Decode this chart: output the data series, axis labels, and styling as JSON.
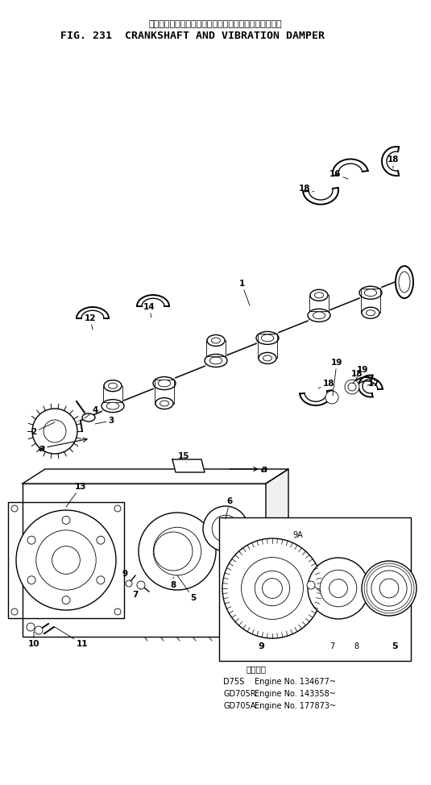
{
  "title_japanese": "クランクシャフト　および　バイブレーション　ダンパ",
  "title_english": "FIG. 231  CRANKSHAFT AND VIBRATION DAMPER",
  "bg_color": "#ffffff",
  "line_color": "#000000",
  "text_color": "#000000",
  "fig_width": 5.35,
  "fig_height": 9.74,
  "dpi": 100,
  "applicability_header": "適用番号",
  "applicability": [
    [
      "D75S",
      "Engine No. 134677~"
    ],
    [
      "GD705R",
      "Engine No. 143358~"
    ],
    [
      "GD705A",
      "Engine No. 177873~"
    ]
  ]
}
